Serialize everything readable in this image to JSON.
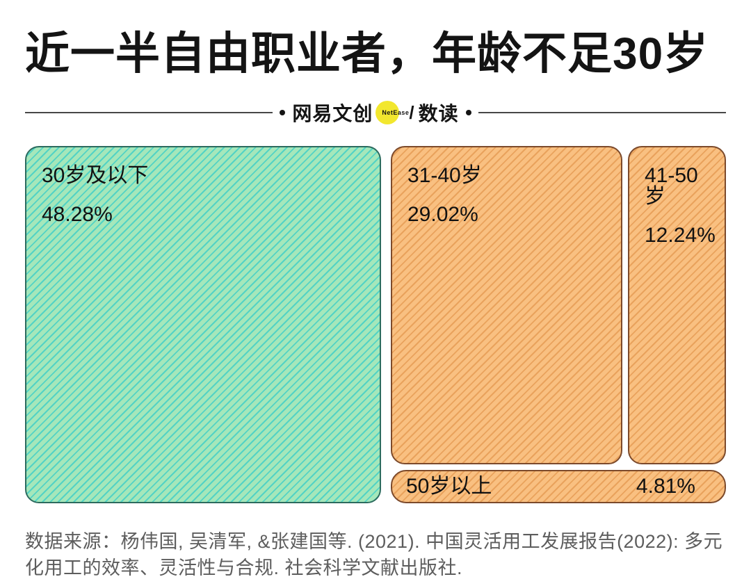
{
  "page": {
    "title": "近一半自由职业者，年龄不足30岁"
  },
  "masthead": {
    "brand": "网易文创",
    "badge": "NetEase",
    "separator": "/",
    "section": "数读"
  },
  "chart_data": {
    "type": "treemap",
    "title": "近一半自由职业者，年龄不足30岁",
    "categories": [
      "30岁及以下",
      "31-40岁",
      "41-50岁",
      "50岁以上"
    ],
    "values": [
      48.28,
      29.02,
      12.24,
      4.81
    ],
    "unit": "%",
    "layout": "large left tile = 30岁及以下; right column holds 31-40岁 and 41-50岁 side by side with 50岁以上 as a full-width bar beneath them",
    "legend": "none",
    "palette": {
      "under30_fill": "#a5e7ba",
      "under30_stripe": "#52d3c5",
      "under30_border": "#2c6b5e",
      "over30_fill": "#f9c081",
      "over30_stripe": "#e9a25c",
      "over30_border": "#7c4a2b",
      "badge_yellow": "#f2e72e",
      "text": "#111111",
      "source_text": "#5d5d5d"
    }
  },
  "blocks": [
    {
      "label": "30岁及以下",
      "value": "48.28%"
    },
    {
      "label": "31-40岁",
      "value": "29.02%"
    },
    {
      "label": "41-50岁",
      "value": "12.24%"
    },
    {
      "label": "50岁以上",
      "value": "4.81%"
    }
  ],
  "source": "数据来源：杨伟国, 吴清军, &张建国等. (2021). 中国灵活用工发展报告(2022): 多元化用工的效率、灵活性与合规. 社会科学文献出版社."
}
